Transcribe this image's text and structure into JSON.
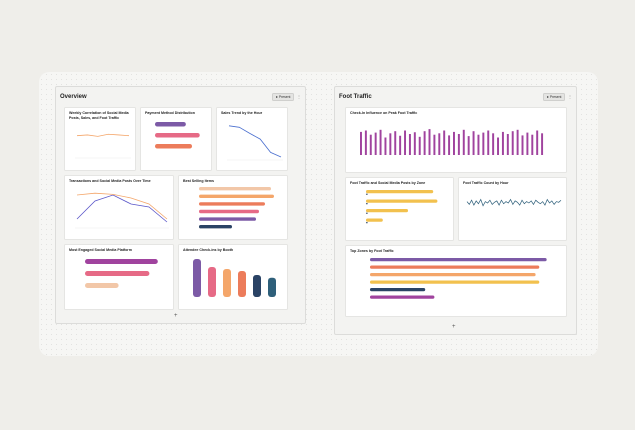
{
  "left_panel": {
    "title": "Overview",
    "present_label": "Present",
    "more": "⋮",
    "add": "+"
  },
  "right_panel": {
    "title": "Foot Traffic",
    "present_label": "Present",
    "more": "⋮",
    "add": "+"
  },
  "colors": {
    "orange": "#f4a66a",
    "purple": "#7c5aa6",
    "pink": "#e66a86",
    "peach": "#f2c7a8",
    "yellow": "#f2c14e",
    "navy": "#2a4365",
    "teal": "#2e5f7a",
    "magenta": "#a0439e",
    "coral": "#ec7c5b"
  },
  "cards": {
    "weekly": {
      "title": "Weekly Correlation of Social Media Posts, Sales, and Foot Traffic"
    },
    "payment": {
      "title": "Payment Method Distribution"
    },
    "sales_trend": {
      "title": "Sales Trend by the Hour"
    },
    "transactions": {
      "title": "Transactions and Social Media Posts Over Time"
    },
    "best_selling": {
      "title": "Best Selling Items"
    },
    "most_engaged": {
      "title": "Most Engaged Social Media Platform"
    },
    "attendee": {
      "title": "Attendee Check-ins by Booth"
    },
    "checkins": {
      "title": "Check-In Influence on Peak Foot Traffic"
    },
    "foot_social": {
      "title": "Foot Traffic and Social Media Posts by Zone"
    },
    "hourly": {
      "title": "Foot Traffic Count by Hour"
    },
    "top_zones": {
      "title": "Top Zones by Foot Traffic"
    }
  },
  "chart_data": [
    {
      "type": "line",
      "title": "Weekly Correlation of Social Media Posts, Sales, and Foot Traffic",
      "series": [
        {
          "values": [
            3.1,
            3.2,
            3.0,
            3.3,
            3.2,
            3.1
          ]
        }
      ],
      "ylim": [
        0,
        5
      ]
    },
    {
      "type": "bar",
      "title": "Payment Method Distribution",
      "orientation": "horizontal",
      "values": [
        40,
        58,
        48
      ],
      "xlim": [
        0,
        70
      ]
    },
    {
      "type": "line",
      "title": "Sales Trend by the Hour",
      "values": [
        90,
        86,
        70,
        55,
        20,
        8
      ],
      "ylim": [
        0,
        100
      ]
    },
    {
      "type": "line",
      "title": "Transactions and Social Media Posts Over Time",
      "series": [
        {
          "values": [
            15,
            45,
            55,
            40,
            35,
            10
          ]
        },
        {
          "values": [
            55,
            58,
            56,
            50,
            40,
            15
          ]
        }
      ],
      "ylim": [
        0,
        70
      ]
    },
    {
      "type": "bar",
      "title": "Best Selling Items",
      "orientation": "horizontal",
      "values": [
        120,
        125,
        110,
        100,
        95,
        55
      ],
      "xlim": [
        0,
        140
      ]
    },
    {
      "type": "bar",
      "title": "Most Engaged Social Media Platform",
      "orientation": "horizontal",
      "values": [
        130,
        115,
        60
      ],
      "xlim": [
        0,
        150
      ]
    },
    {
      "type": "bar",
      "title": "Attendee Check-ins by Booth",
      "values": [
        95,
        75,
        70,
        65,
        55,
        48
      ],
      "ylim": [
        0,
        100
      ]
    },
    {
      "type": "bar",
      "title": "Check-In Influence on Peak Foot Traffic",
      "values": [
        66,
        70,
        58,
        64,
        72,
        50,
        62,
        68,
        55,
        70,
        60,
        65,
        52,
        68,
        74,
        58,
        62,
        70,
        56,
        66,
        60,
        72,
        54,
        68,
        58,
        64,
        70,
        62,
        50,
        66,
        60,
        68,
        72,
        56,
        64,
        58,
        70,
        62
      ],
      "ylim": [
        0,
        100
      ]
    },
    {
      "type": "bar",
      "title": "Foot Traffic and Social Media Posts by Zone",
      "orientation": "horizontal",
      "series": [
        {
          "values": [
            80,
            85,
            50,
            20
          ]
        },
        {
          "values": [
            2,
            2,
            2,
            2
          ]
        }
      ],
      "xlim": [
        0,
        100
      ]
    },
    {
      "type": "line",
      "title": "Foot Traffic Count by Hour",
      "values": [
        60,
        40,
        70,
        35,
        65,
        45,
        75,
        30,
        60,
        50,
        70,
        40,
        55,
        65,
        35,
        70,
        45,
        60,
        50,
        75,
        40,
        65,
        55,
        35,
        70,
        45,
        60,
        50,
        65,
        40,
        70,
        55,
        45,
        60,
        35,
        75,
        50,
        65,
        40,
        60,
        55,
        70
      ],
      "ylim": [
        0,
        100
      ]
    },
    {
      "type": "bar",
      "title": "Top Zones by Foot Traffic",
      "orientation": "horizontal",
      "values": [
        96,
        92,
        90,
        92,
        30,
        35
      ],
      "xlim": [
        0,
        100
      ]
    }
  ]
}
